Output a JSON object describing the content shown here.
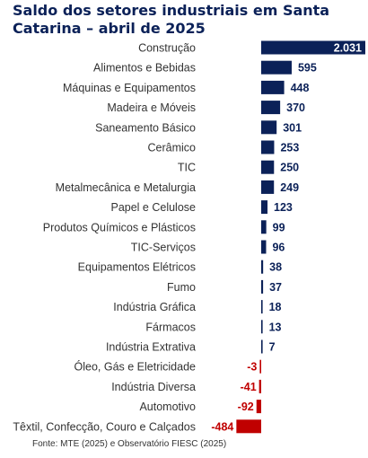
{
  "title": "Saldo dos setores industriais em Santa Catarina – abril de 2025",
  "source": "Fonte: MTE (2025) e Observatório FIESC (2025)",
  "colors": {
    "positive": "#0b2158",
    "negative": "#c00000",
    "positive_label_inside": "#ffffff",
    "axis_label": "#333333"
  },
  "chart_data": {
    "type": "bar",
    "orientation": "horizontal",
    "categories": [
      "Construção",
      "Alimentos e Bebidas",
      "Máquinas e Equipamentos",
      "Madeira e Móveis",
      "Saneamento Básico",
      "Cerâmico",
      "TIC",
      "Metalmecânica e Metalurgia",
      "Papel e Celulose",
      "Produtos Químicos e Plásticos",
      "TIC-Serviços",
      "Equipamentos Elétricos",
      "Fumo",
      "Indústria Gráfica",
      "Fármacos",
      "Indústria Extrativa",
      "Óleo, Gás e Eletricidade",
      "Indústria Diversa",
      "Automotivo",
      "Têxtil, Confecção, Couro e Calçados"
    ],
    "values": [
      2031,
      595,
      448,
      370,
      301,
      253,
      250,
      249,
      123,
      99,
      96,
      38,
      37,
      18,
      13,
      7,
      -3,
      -41,
      -92,
      -484
    ],
    "value_labels": [
      "2.031",
      "595",
      "448",
      "370",
      "301",
      "253",
      "250",
      "249",
      "123",
      "99",
      "96",
      "38",
      "37",
      "18",
      "13",
      "7",
      "-3",
      "-41",
      "-92",
      "-484"
    ],
    "xlabel": "",
    "ylabel": "",
    "grid": false,
    "legend": "none"
  }
}
